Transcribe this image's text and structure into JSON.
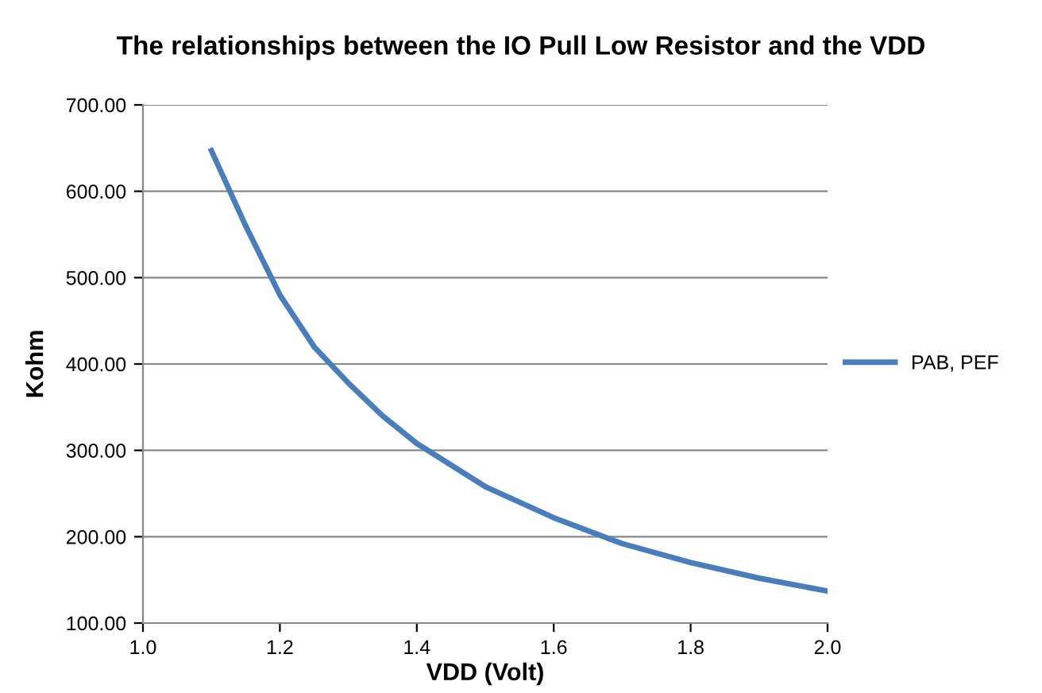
{
  "chart_data": {
    "type": "line",
    "title": "The relationships between the IO Pull Low Resistor and the VDD",
    "xlabel": "VDD (Volt)",
    "ylabel": "Kohm",
    "x": [
      1.1,
      1.15,
      1.2,
      1.25,
      1.3,
      1.35,
      1.4,
      1.5,
      1.6,
      1.7,
      1.8,
      1.9,
      2.0
    ],
    "series": [
      {
        "name": "PAB, PEF",
        "color": "#4a7ebb",
        "values": [
          647,
          560,
          480,
          420,
          378,
          340,
          308,
          258,
          222,
          192,
          170,
          152,
          137
        ]
      }
    ],
    "xlim": [
      1.0,
      2.0
    ],
    "xticks": [
      {
        "value": 1.0,
        "label": "1.0"
      },
      {
        "value": 1.2,
        "label": "1.2"
      },
      {
        "value": 1.4,
        "label": "1.4"
      },
      {
        "value": 1.6,
        "label": "1.6"
      },
      {
        "value": 1.8,
        "label": "1.8"
      },
      {
        "value": 2.0,
        "label": "2.0"
      }
    ],
    "ylim": [
      100,
      700
    ],
    "yticks": [
      {
        "value": 100,
        "label": "100.00"
      },
      {
        "value": 200,
        "label": "200.00"
      },
      {
        "value": 300,
        "label": "300.00"
      },
      {
        "value": 400,
        "label": "400.00"
      },
      {
        "value": 500,
        "label": "500.00"
      },
      {
        "value": 600,
        "label": "600.00"
      },
      {
        "value": 700,
        "label": "700.00"
      }
    ],
    "grid": "y",
    "legend": "right",
    "marker": "none",
    "line_style": "solid"
  }
}
